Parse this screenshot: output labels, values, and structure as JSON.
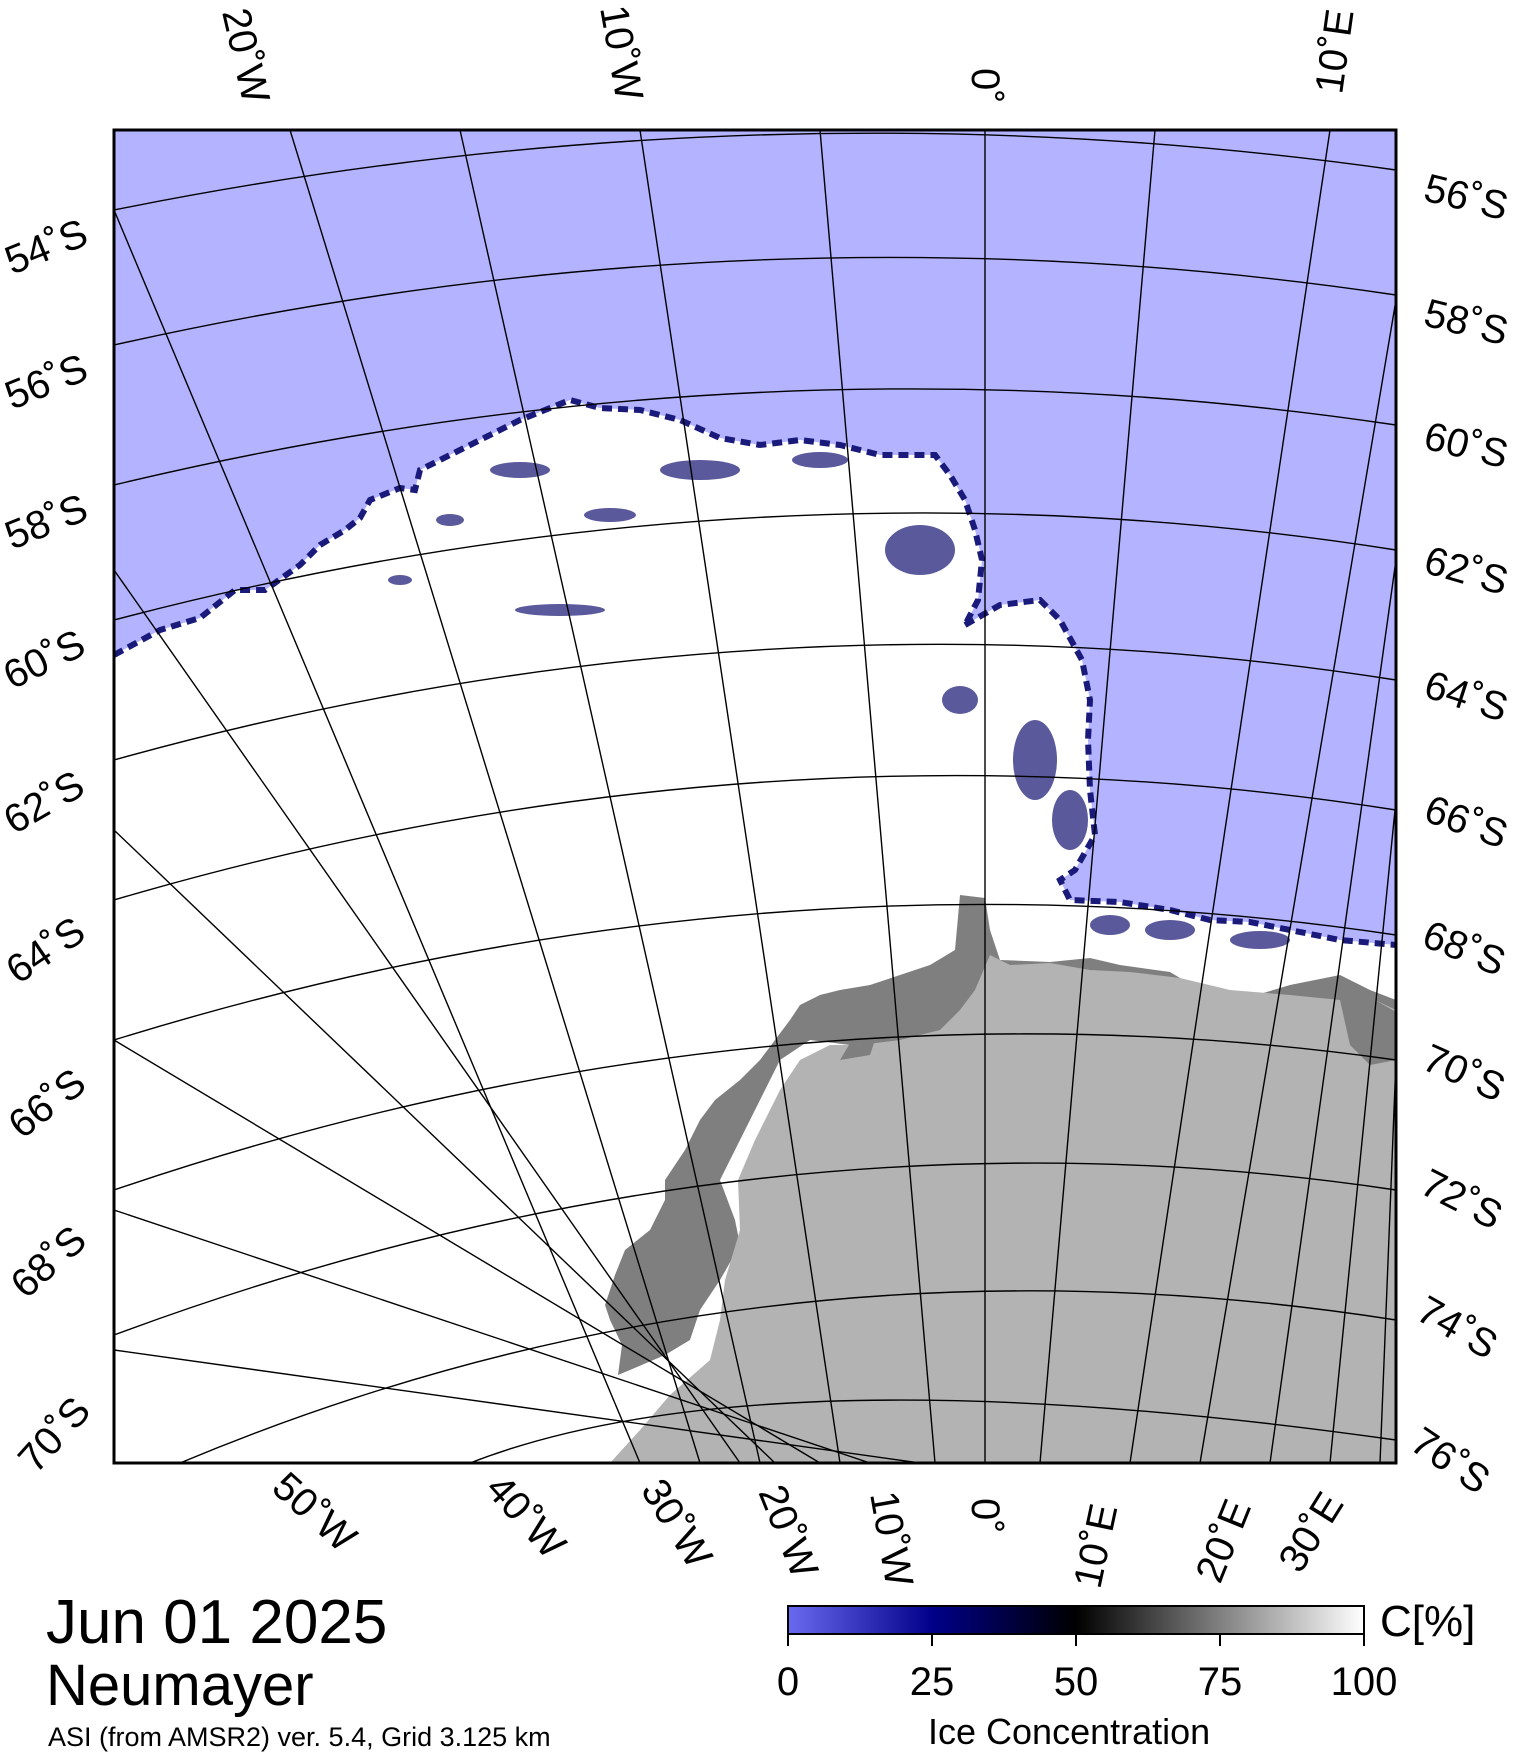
{
  "map": {
    "date": "Jun 01 2025",
    "station": "Neumayer",
    "credit": "ASI (from AMSR2) ver. 5.4,  Grid 3.125 km",
    "colors": {
      "open_water": "#b3b3ff",
      "land_ice_shelf": "#7f7f7f",
      "land": "#b3b3b3",
      "sea_ice_full": "#ffffff",
      "graticule": "#000000"
    },
    "top_lon_labels": [
      "20˚W",
      "10˚W",
      "0˚",
      "10˚E"
    ],
    "left_lat_labels": [
      "54˚S",
      "56˚S",
      "58˚S",
      "60˚S",
      "62˚S",
      "64˚S",
      "66˚S",
      "68˚S",
      "70˚S"
    ],
    "right_lat_labels": [
      "56˚S",
      "58˚S",
      "60˚S",
      "62˚S",
      "64˚S",
      "66˚S",
      "68˚S",
      "70˚S",
      "72˚S",
      "74˚S",
      "76˚S"
    ],
    "bottom_lon_labels": [
      "50˚W",
      "40˚W",
      "30˚W",
      "20˚W",
      "10˚W",
      "0˚",
      "10˚E",
      "20˚E",
      "30˚E"
    ]
  },
  "colorbar": {
    "title": "Ice Concentration",
    "unit": "C[%]",
    "ticks": [
      "0",
      "25",
      "50",
      "75",
      "100"
    ],
    "stops": [
      "#6a6af0",
      "#00008a",
      "#000000",
      "#808080",
      "#ffffff"
    ]
  }
}
